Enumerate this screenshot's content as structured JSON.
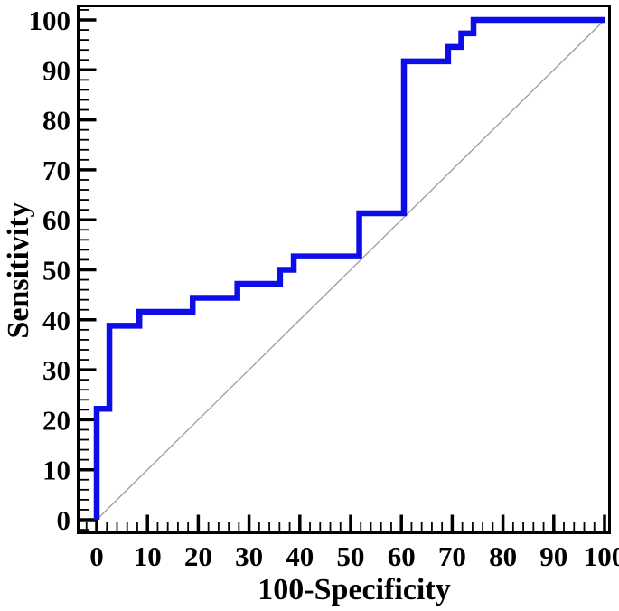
{
  "chart_data": {
    "type": "line",
    "subtype": "roc-step-curve",
    "title": "",
    "xlabel": "100-Specificity",
    "ylabel": "Sensitivity",
    "xlim": [
      0,
      100
    ],
    "ylim": [
      0,
      100
    ],
    "x_ticks": [
      0,
      10,
      20,
      30,
      40,
      50,
      60,
      70,
      80,
      90,
      100
    ],
    "y_ticks": [
      0,
      10,
      20,
      30,
      40,
      50,
      60,
      70,
      80,
      90,
      100
    ],
    "minor_tick_step": 2,
    "x_minor_range": [
      -2,
      100
    ],
    "y_minor_range": [
      -2,
      102
    ],
    "grid": false,
    "legend": "none",
    "background": "#ffffff",
    "axis_color": "#000000",
    "series": [
      {
        "id": "roc-curve",
        "role": "curve",
        "color": "#0d0de8",
        "points": [
          [
            0,
            0
          ],
          [
            0,
            22.2
          ],
          [
            2.5,
            22.2
          ],
          [
            2.5,
            38.8
          ],
          [
            8.4,
            38.8
          ],
          [
            8.4,
            41.6
          ],
          [
            18.9,
            41.6
          ],
          [
            18.9,
            44.4
          ],
          [
            27.7,
            44.4
          ],
          [
            27.7,
            47.2
          ],
          [
            36.1,
            47.2
          ],
          [
            36.1,
            50.0
          ],
          [
            38.8,
            50.0
          ],
          [
            38.8,
            52.7
          ],
          [
            51.7,
            52.7
          ],
          [
            51.7,
            61.3
          ],
          [
            60.5,
            61.3
          ],
          [
            60.5,
            91.7
          ],
          [
            69.2,
            91.7
          ],
          [
            69.2,
            94.6
          ],
          [
            71.8,
            94.6
          ],
          [
            71.8,
            97.3
          ],
          [
            74.2,
            97.3
          ],
          [
            74.2,
            100.0
          ],
          [
            100.0,
            100.0
          ]
        ]
      },
      {
        "id": "reference-diagonal",
        "role": "reference",
        "color": "#9c9c9c",
        "points": [
          [
            0,
            0
          ],
          [
            100,
            100
          ]
        ]
      }
    ]
  }
}
